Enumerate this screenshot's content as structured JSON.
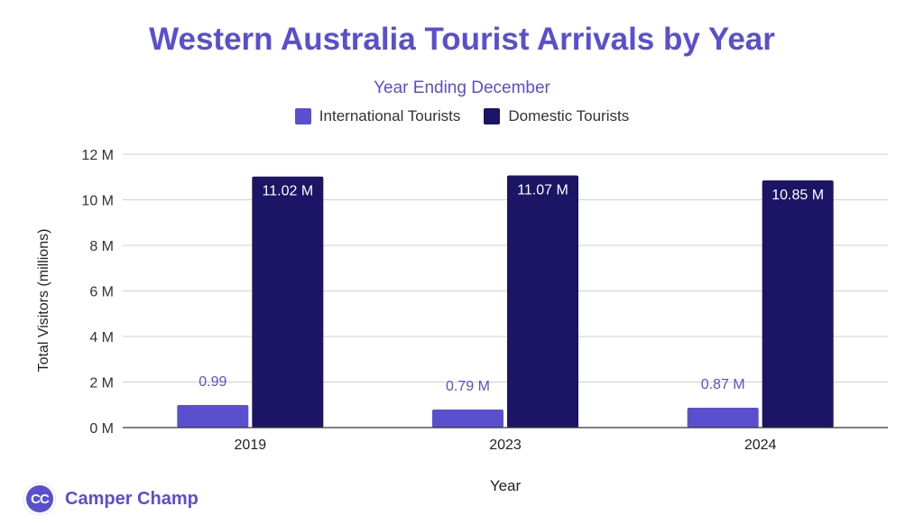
{
  "chart_data": {
    "type": "bar",
    "title": "Western Australia Tourist Arrivals by Year",
    "subtitle": "Year Ending December",
    "xlabel": "Year",
    "ylabel": "Total Visitors (millions)",
    "categories": [
      "2019",
      "2023",
      "2024"
    ],
    "ylim": [
      0,
      12
    ],
    "yticks": [
      {
        "value": 0,
        "label": "0 M"
      },
      {
        "value": 2,
        "label": "2 M"
      },
      {
        "value": 4,
        "label": "4 M"
      },
      {
        "value": 6,
        "label": "6 M"
      },
      {
        "value": 8,
        "label": "8 M"
      },
      {
        "value": 10,
        "label": "10 M"
      },
      {
        "value": 12,
        "label": "12 M"
      }
    ],
    "grid": true,
    "legend_position": "top",
    "series": [
      {
        "name": "International Tourists",
        "color": "#5a4fcf",
        "values": [
          0.99,
          0.79,
          0.87
        ],
        "data_labels": [
          "0.99",
          "0.79 M",
          "0.87 M"
        ]
      },
      {
        "name": "Domestic Tourists",
        "color": "#1c1464",
        "values": [
          11.02,
          11.07,
          10.85
        ],
        "data_labels": [
          "11.02 M",
          "11.07 M",
          "10.85 M"
        ]
      }
    ]
  },
  "brand": {
    "logo_text": "CC",
    "name": "Camper Champ"
  }
}
